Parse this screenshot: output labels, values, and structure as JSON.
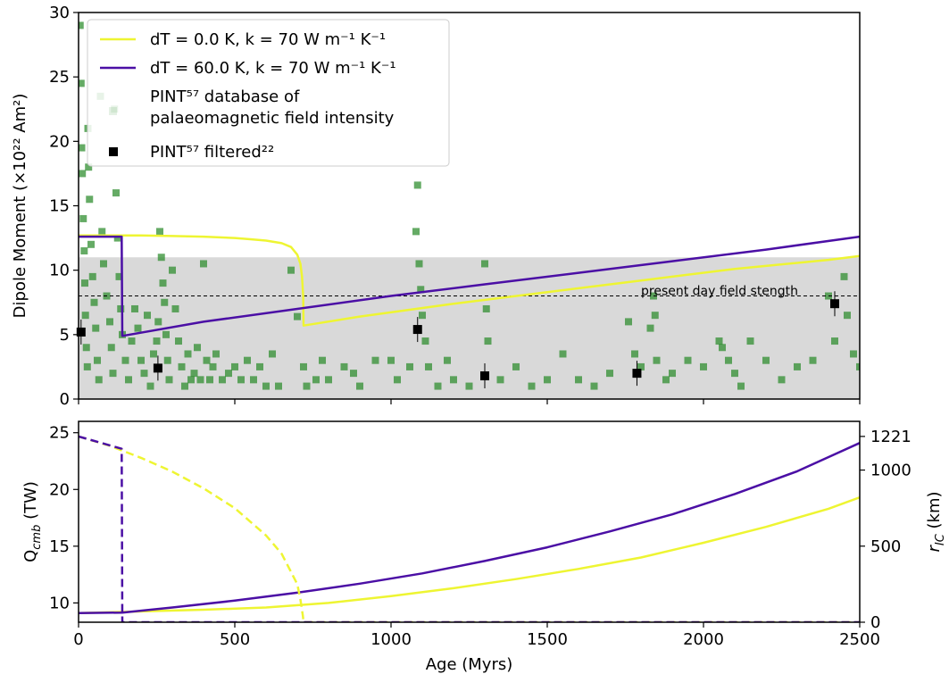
{
  "chart_data": [
    {
      "type": "line",
      "panel": "top",
      "xlim": [
        0,
        2500
      ],
      "ylim": [
        0,
        30
      ],
      "ylabel": "Dipole Moment (×10²² Am²)",
      "xticks": [
        "0",
        "500",
        "1000",
        "1500",
        "2000",
        "2500"
      ],
      "yticks": [
        "0",
        "5",
        "10",
        "15",
        "20",
        "25",
        "30"
      ],
      "shaded_band": {
        "y_from": 0,
        "y_to": 11.0,
        "color": "#d9d9d9"
      },
      "reference_line": {
        "y": 8.0,
        "style": "dashed",
        "label": "present day field stength"
      },
      "legend": {
        "placement": "top-left",
        "entries": [
          {
            "label": "dT = 0.0 K, k = 70 W m⁻¹ K⁻¹",
            "color": "#eef532",
            "marker": "line"
          },
          {
            "label": "dT = 60.0 K, k = 70 W m⁻¹ K⁻¹",
            "color": "#4b0fa5",
            "marker": "line"
          },
          {
            "label": "PINT⁵⁷ database of",
            "label_line2": "palaeomagnetic field intensity",
            "color": "#2a8a2a",
            "marker": "square-faint"
          },
          {
            "label": "PINT⁵⁷ filtered²²",
            "color": "#000000",
            "marker": "square"
          }
        ]
      },
      "series": [
        {
          "name": "dT = 0.0 K, k = 70 W m⁻¹ K⁻¹",
          "color": "#eef532",
          "x": [
            0,
            100,
            200,
            300,
            400,
            500,
            550,
            600,
            650,
            680,
            700,
            710,
            715,
            719,
            720,
            900,
            1200,
            1500,
            1800,
            2100,
            2400,
            2500
          ],
          "y": [
            12.7,
            12.7,
            12.7,
            12.65,
            12.6,
            12.5,
            12.4,
            12.3,
            12.1,
            11.8,
            11.2,
            10.5,
            9.5,
            8.0,
            5.7,
            6.4,
            7.4,
            8.3,
            9.2,
            10.1,
            10.8,
            11.1
          ]
        },
        {
          "name": "dT = 60.0 K, k = 70 W m⁻¹ K⁻¹",
          "color": "#4b0fa5",
          "x": [
            0,
            138,
            139,
            140,
            400,
            700,
            1000,
            1300,
            1600,
            1900,
            2200,
            2500
          ],
          "y": [
            12.6,
            12.6,
            8.0,
            4.9,
            6.0,
            7.0,
            8.0,
            8.9,
            9.8,
            10.7,
            11.6,
            12.6
          ]
        }
      ],
      "pint_database": {
        "color": "#2a8a2a",
        "x": [
          5,
          8,
          10,
          12,
          15,
          18,
          20,
          22,
          25,
          28,
          30,
          32,
          35,
          40,
          45,
          50,
          55,
          60,
          65,
          70,
          75,
          80,
          90,
          100,
          105,
          110,
          115,
          120,
          125,
          130,
          135,
          140,
          150,
          160,
          170,
          180,
          190,
          200,
          210,
          220,
          230,
          240,
          250,
          255,
          260,
          265,
          270,
          275,
          280,
          285,
          290,
          300,
          310,
          320,
          330,
          340,
          350,
          360,
          370,
          380,
          390,
          400,
          410,
          420,
          430,
          440,
          460,
          480,
          500,
          520,
          540,
          560,
          580,
          600,
          620,
          640,
          680,
          700,
          720,
          730,
          760,
          780,
          800,
          850,
          880,
          900,
          950,
          1000,
          1020,
          1060,
          1080,
          1085,
          1090,
          1095,
          1100,
          1110,
          1120,
          1150,
          1180,
          1200,
          1250,
          1300,
          1305,
          1310,
          1350,
          1400,
          1450,
          1500,
          1550,
          1600,
          1650,
          1700,
          1760,
          1780,
          1800,
          1830,
          1840,
          1845,
          1850,
          1880,
          1900,
          1950,
          2000,
          2050,
          2060,
          2080,
          2100,
          2120,
          2150,
          2200,
          2250,
          2300,
          2350,
          2400,
          2420,
          2450,
          2460,
          2480,
          2500
        ],
        "y": [
          29.0,
          24.5,
          19.5,
          17.5,
          14.0,
          11.5,
          9.0,
          6.5,
          4.0,
          2.5,
          21.0,
          18.0,
          15.5,
          12.0,
          9.5,
          7.5,
          5.5,
          3.0,
          1.5,
          23.5,
          13.0,
          10.5,
          8.0,
          6.0,
          4.0,
          2.0,
          22.5,
          16.0,
          12.5,
          9.5,
          7.0,
          5.0,
          3.0,
          1.5,
          4.5,
          7.0,
          5.5,
          3.0,
          2.0,
          6.5,
          1.0,
          3.5,
          4.5,
          6.0,
          13.0,
          11.0,
          9.0,
          7.5,
          5.0,
          3.0,
          1.5,
          10.0,
          7.0,
          4.5,
          2.5,
          1.0,
          3.5,
          1.5,
          2.0,
          4.0,
          1.5,
          10.5,
          3.0,
          1.5,
          2.5,
          3.5,
          1.5,
          2.0,
          2.5,
          1.5,
          3.0,
          1.5,
          2.5,
          1.0,
          3.5,
          1.0,
          10.0,
          6.4,
          2.5,
          1.0,
          1.5,
          3.0,
          1.5,
          2.5,
          2.0,
          1.0,
          3.0,
          3.0,
          1.5,
          2.5,
          13.0,
          16.6,
          10.5,
          8.5,
          6.5,
          4.5,
          2.5,
          1.0,
          3.0,
          1.5,
          1.0,
          10.5,
          7.0,
          4.5,
          1.5,
          2.5,
          1.0,
          1.5,
          3.5,
          1.5,
          1.0,
          2.0,
          6.0,
          3.5,
          2.5,
          5.5,
          8.0,
          6.5,
          3.0,
          1.5,
          2.0,
          3.0,
          2.5,
          4.5,
          4.0,
          3.0,
          2.0,
          1.0,
          4.5,
          3.0,
          1.5,
          2.5,
          3.0,
          8.0,
          4.5,
          9.5,
          6.5,
          3.5,
          2.5
        ]
      },
      "pint_filtered": {
        "color": "#000000",
        "x": [
          8,
          254,
          1085,
          1300,
          1787,
          2420
        ],
        "y": [
          5.2,
          2.4,
          5.4,
          1.8,
          2.0,
          7.4
        ]
      }
    },
    {
      "type": "line",
      "panel": "bottom",
      "xlabel": "Age (Myrs)",
      "ylabel": "Q_cmb (TW)",
      "y2label": "r_IC (km)",
      "xlim": [
        0,
        2500
      ],
      "ylim": [
        8.3,
        26.0
      ],
      "y2lim": [
        0,
        1320
      ],
      "xticks": [
        "0",
        "500",
        "1000",
        "1500",
        "2000",
        "2500"
      ],
      "yticks": [
        "10",
        "15",
        "20",
        "25"
      ],
      "y2ticks": [
        "0",
        "500",
        "1000",
        "1221"
      ],
      "series": [
        {
          "name": "dT = 0.0 K, k = 70 W m⁻¹ K⁻¹",
          "quantity": "Q_cmb",
          "color": "#eef532",
          "style": "solid",
          "x": [
            0,
            200,
            400,
            600,
            800,
            1000,
            1200,
            1400,
            1600,
            1800,
            2000,
            2200,
            2400,
            2500
          ],
          "y": [
            9.1,
            9.25,
            9.4,
            9.6,
            10.0,
            10.6,
            11.3,
            12.1,
            13.0,
            14.0,
            15.3,
            16.7,
            18.3,
            19.3
          ]
        },
        {
          "name": "dT = 60.0 K, k = 70 W m⁻¹ K⁻¹",
          "quantity": "Q_cmb",
          "color": "#4b0fa5",
          "style": "solid",
          "x": [
            0,
            140,
            300,
            500,
            700,
            900,
            1100,
            1300,
            1500,
            1700,
            1900,
            2100,
            2300,
            2500
          ],
          "y": [
            9.1,
            9.15,
            9.6,
            10.2,
            10.9,
            11.7,
            12.6,
            13.7,
            14.9,
            16.3,
            17.8,
            19.6,
            21.6,
            24.1
          ]
        },
        {
          "name": "dT = 0.0 K, k = 70 W m⁻¹ K⁻¹",
          "quantity": "r_IC",
          "color": "#eef532",
          "style": "dashed",
          "x": [
            0,
            100,
            200,
            300,
            400,
            500,
            600,
            650,
            700,
            710,
            718,
            720,
            800,
            1200,
            1600,
            2000,
            2400,
            2500
          ],
          "y": [
            1221,
            1160,
            1080,
            990,
            880,
            750,
            570,
            450,
            250,
            150,
            40,
            0,
            0,
            0,
            0,
            0,
            0,
            0
          ]
        },
        {
          "name": "dT = 60.0 K, k = 70 W m⁻¹ K⁻¹",
          "quantity": "r_IC",
          "color": "#4b0fa5",
          "style": "dashed",
          "x": [
            0,
            70,
            138,
            139,
            140,
            500,
            1000,
            1500,
            2000,
            2500
          ],
          "y": [
            1221,
            1180,
            1140,
            500,
            0,
            0,
            0,
            0,
            0,
            0
          ]
        }
      ]
    }
  ],
  "colors": {
    "yellow": "#eef532",
    "purple": "#4b0fa5",
    "green": "#2a8a2a",
    "band": "#d9d9d9"
  }
}
